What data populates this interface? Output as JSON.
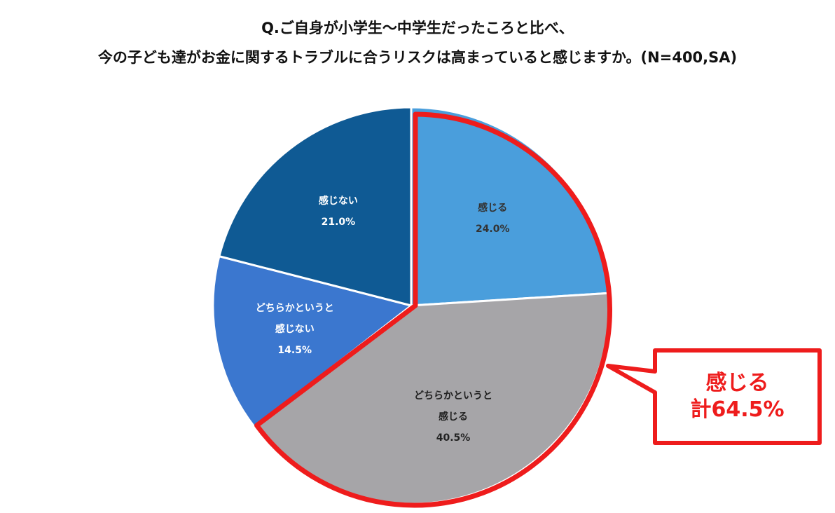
{
  "chart_data": {
    "type": "pie",
    "title": [
      "Q.ご自身が小学生〜中学生だったころと比べ、",
      "今の子ども達がお金に関するトラブルに合うリスクは高まっていると感じますか。(N=400,SA)"
    ],
    "categories": [
      "感じる",
      "どちらかというと感じる",
      "どちらかというと感じない",
      "感じない"
    ],
    "values": [
      24.0,
      40.5,
      14.5,
      21.0
    ],
    "value_labels": [
      "24.0%",
      "40.5%",
      "14.5%",
      "21.0%"
    ],
    "colors": [
      "#4a9edc",
      "#a6a5a8",
      "#3b77cf",
      "#0f5a94"
    ],
    "label_colors": [
      "#333333",
      "#222222",
      "#ffffff",
      "#ffffff"
    ],
    "highlight": [
      0,
      1
    ],
    "highlight_color": "#ee1c1c",
    "annotation": [
      "感じる",
      "計64.5%"
    ]
  }
}
